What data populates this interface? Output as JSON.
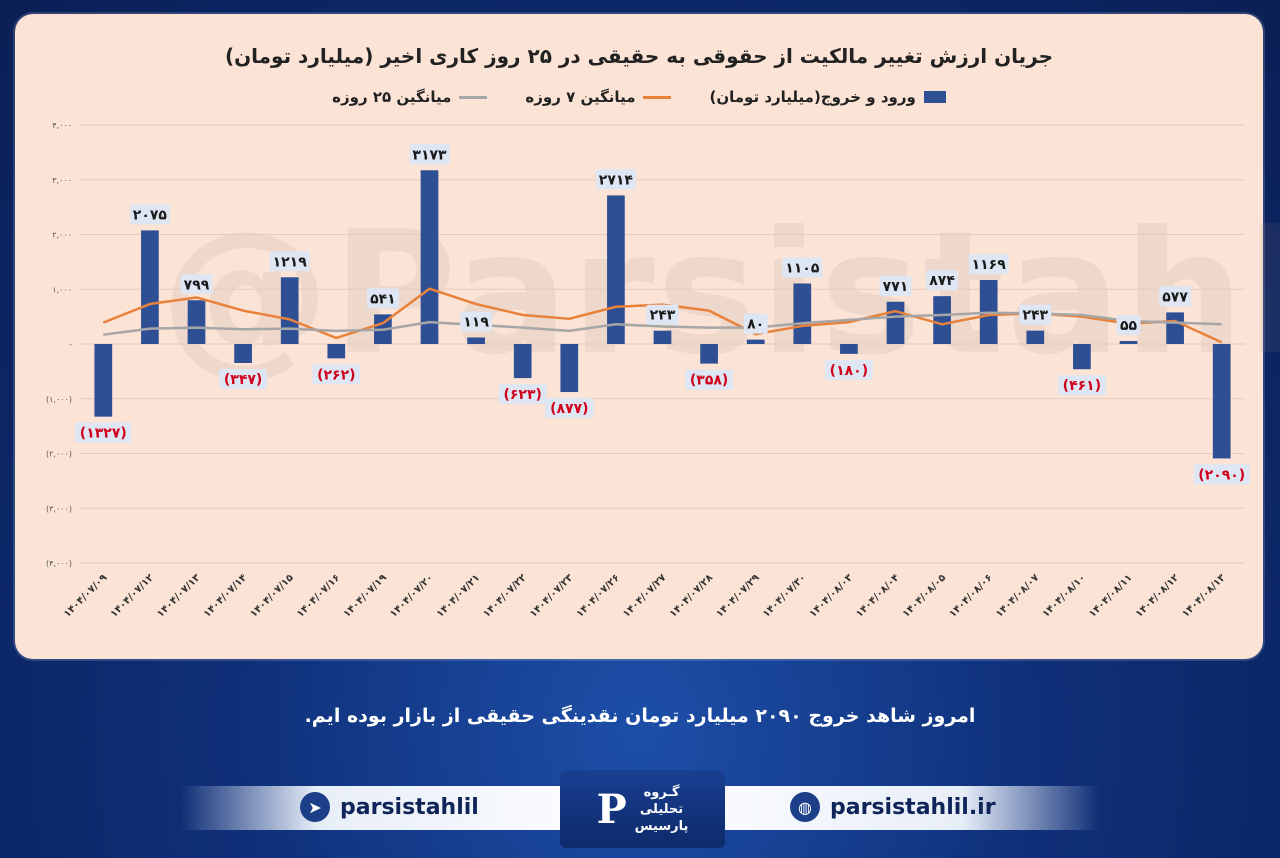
{
  "chart_data": {
    "type": "bar",
    "title": "جریان ارزش تغییر مالکیت از حقوقی به حقیقی در ۲۵ روز کاری اخیر (میلیارد تومان)",
    "categories": [
      "۱۴۰۴/۰۷/۰۹",
      "۱۴۰۴/۰۷/۱۲",
      "۱۴۰۴/۰۷/۱۳",
      "۱۴۰۴/۰۷/۱۴",
      "۱۴۰۴/۰۷/۱۵",
      "۱۴۰۴/۰۷/۱۶",
      "۱۴۰۴/۰۷/۱۹",
      "۱۴۰۴/۰۷/۲۰",
      "۱۴۰۴/۰۷/۲۱",
      "۱۴۰۴/۰۷/۲۲",
      "۱۴۰۴/۰۷/۲۳",
      "۱۴۰۴/۰۷/۲۶",
      "۱۴۰۴/۰۷/۲۷",
      "۱۴۰۴/۰۷/۲۸",
      "۱۴۰۴/۰۷/۲۹",
      "۱۴۰۴/۰۷/۳۰",
      "۱۴۰۴/۰۸/۰۳",
      "۱۴۰۴/۰۸/۰۴",
      "۱۴۰۴/۰۸/۰۵",
      "۱۴۰۴/۰۸/۰۶",
      "۱۴۰۴/۰۸/۰۷",
      "۱۴۰۴/۰۸/۱۰",
      "۱۴۰۴/۰۸/۱۱",
      "۱۴۰۴/۰۸/۱۲",
      "۱۴۰۴/۰۸/۱۳"
    ],
    "series": [
      {
        "name": "ورود و خروج(میلیارد تومان)",
        "kind": "bar",
        "color": "#2f4f95",
        "values": [
          -1327,
          2075,
          799,
          -347,
          1219,
          -262,
          541,
          3173,
          119,
          -623,
          -877,
          2714,
          243,
          -358,
          80,
          1105,
          -180,
          771,
          874,
          1169,
          243,
          -461,
          55,
          577,
          -2090
        ]
      },
      {
        "name": "میانگین ۷ روزه",
        "kind": "line",
        "color": "#e8823a",
        "values": [
          390,
          730,
          850,
          610,
          450,
          110,
          380,
          1010,
          730,
          530,
          460,
          680,
          720,
          610,
          180,
          330,
          400,
          600,
          360,
          530,
          560,
          500,
          370,
          420,
          30
        ]
      },
      {
        "name": "میانگین ۲۵ روزه",
        "kind": "line",
        "color": "#a6a6a6",
        "values": [
          170,
          280,
          300,
          270,
          280,
          240,
          260,
          400,
          350,
          300,
          240,
          360,
          320,
          300,
          300,
          380,
          440,
          500,
          530,
          570,
          560,
          530,
          420,
          390,
          360
        ]
      }
    ],
    "data_labels": [
      "(۱۳۲۷)",
      "۲۰۷۵",
      "۷۹۹",
      "(۳۴۷)",
      "۱۲۱۹",
      "(۲۶۲)",
      "۵۴۱",
      "۳۱۷۳",
      "۱۱۹",
      "(۶۲۳)",
      "(۸۷۷)",
      "۲۷۱۴",
      "۲۴۳",
      "(۳۵۸)",
      "۸۰",
      "۱۱۰۵",
      "(۱۸۰)",
      "۷۷۱",
      "۸۷۴",
      "۱۱۶۹",
      "۲۴۳",
      "(۴۶۱)",
      "۵۵",
      "۵۷۷",
      "(۲۰۹۰)"
    ],
    "y_ticks": [
      4000,
      3000,
      2000,
      1000,
      0,
      -1000,
      -2000,
      -3000,
      -4000
    ],
    "y_tick_labels": [
      "۴,۰۰۰",
      "۳,۰۰۰",
      "۲,۰۰۰",
      "۱,۰۰۰",
      "-",
      "(۱,۰۰۰)",
      "(۲,۰۰۰)",
      "(۳,۰۰۰)",
      "(۴,۰۰۰)"
    ],
    "ylim": [
      -4000,
      4000
    ],
    "grid": true,
    "legend_position": "top-center",
    "positive_label_color": "#1a1a1a",
    "negative_label_color": "#d0021b",
    "label_box_color": "#dde6f2"
  },
  "watermark": "@Parsistahlil",
  "caption": "امروز شاهد خروج ۲۰۹۰ میلیارد تومان نقدینگی حقیقی از بازار بوده ایم.",
  "footer": {
    "telegram_handle": "parsistahlil",
    "website": "parsistahlil.ir",
    "logo_line1": "گـروه",
    "logo_line2": "تحلیلی",
    "logo_line3": "پارسیس",
    "telegram_icon": "telegram-icon",
    "web_icon": "globe-icon",
    "logo_icon": "parsis-logo"
  },
  "colors": {
    "panel": "#fbe3d6",
    "background": "#0f2f78",
    "accent": "#2f4f95"
  }
}
